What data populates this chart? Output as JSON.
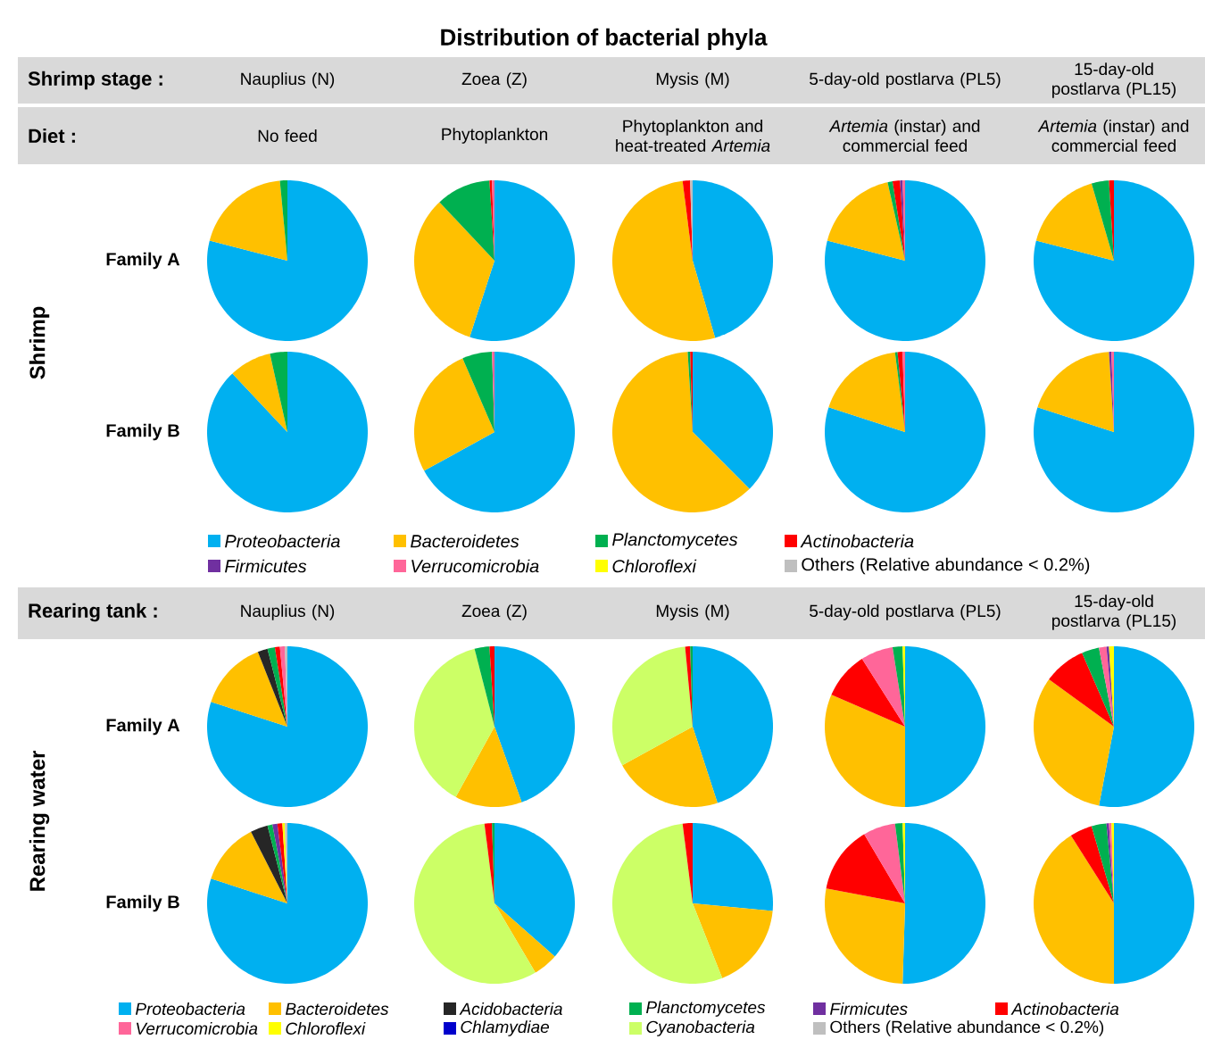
{
  "chart_data": [
    {
      "type": "other",
      "title": "Distribution of bacterial phyla",
      "annotations": [
        "Shrimp stage :",
        "Diet :",
        "Shrimp",
        "Rearing tank :",
        "Rearing water"
      ]
    },
    {
      "type": "pie",
      "title": "Nauplius (N)",
      "subtitle": "No feed",
      "ylabel": "Family A",
      "categories": [
        null,
        null,
        null
      ],
      "values": [
        79,
        19.5,
        1.5
      ],
      "colors": [
        "#00b0f0",
        "#ffc000",
        "#00b050"
      ]
    },
    {
      "type": "pie",
      "title": "Zoea (Z)",
      "subtitle": "Phytoplankton",
      "categories": [
        null,
        null,
        null,
        null,
        null
      ],
      "values": [
        55,
        33,
        11,
        0.5,
        0.5
      ],
      "colors": [
        "#00b0f0",
        "#ffc000",
        "#00b050",
        "#ff0000",
        "#ff6699"
      ]
    },
    {
      "type": "pie",
      "title": "Mysis (M)",
      "subtitle": "Phytoplankton and heat-treated *Artemia*",
      "categories": [
        null,
        null,
        null,
        null
      ],
      "values": [
        45.5,
        52.5,
        1.5,
        0.5
      ],
      "colors": [
        "#00b0f0",
        "#ffc000",
        "#ff0000",
        "#bfbfbf"
      ]
    },
    {
      "type": "pie",
      "title": "5-day-old postlarva (PL5)",
      "subtitle": "*Artemia* (instar) and commercial feed",
      "categories": [
        null,
        null,
        null,
        null,
        null,
        null
      ],
      "values": [
        79,
        17.5,
        1,
        1.5,
        0.5,
        0.5
      ],
      "colors": [
        "#00b0f0",
        "#ffc000",
        "#00b050",
        "#ff0000",
        "#7030a0",
        "#ff6699"
      ]
    },
    {
      "type": "pie",
      "title": "15-day-old postlarva (PL15)",
      "subtitle": "*Artemia* (instar) and commercial feed",
      "categories": [
        null,
        null,
        null,
        null
      ],
      "values": [
        79,
        16.5,
        3.5,
        1
      ],
      "colors": [
        "#00b0f0",
        "#ffc000",
        "#00b050",
        "#ff0000"
      ]
    },
    {
      "type": "pie",
      "ylabel": "Family B",
      "legend": "bottom",
      "categories": [
        "Proteobacteria",
        "Bacteroidetes",
        "Planctomycetes",
        "Actinobacteria",
        "Firmicutes",
        "Verrucomicrobia",
        "Chloroflexi",
        "Others (Relative abundance < 0.2%)"
      ],
      "values": [
        88,
        8.5,
        3.5,
        0,
        0,
        0,
        0,
        0
      ],
      "colors": [
        "#00b0f0",
        "#ffc000",
        "#00b050",
        "#ff0000",
        "#7030a0",
        "#ff6699",
        "#ffff00",
        "#bfbfbf"
      ]
    },
    {
      "type": "pie",
      "categories": [
        null,
        null,
        null,
        null
      ],
      "values": [
        67,
        26.5,
        6,
        0.5
      ],
      "colors": [
        "#00b0f0",
        "#ffc000",
        "#00b050",
        "#ff6699"
      ]
    },
    {
      "type": "pie",
      "categories": [
        null,
        null,
        null,
        null
      ],
      "values": [
        37.5,
        61.5,
        0.5,
        0.5
      ],
      "colors": [
        "#00b0f0",
        "#ffc000",
        "#00b050",
        "#ff0000"
      ]
    },
    {
      "type": "pie",
      "categories": [
        null,
        null,
        null,
        null,
        null
      ],
      "values": [
        80,
        18,
        0.5,
        1,
        0.5
      ],
      "colors": [
        "#00b0f0",
        "#ffc000",
        "#00b050",
        "#ff0000",
        "#ff6699"
      ]
    },
    {
      "type": "pie",
      "categories": [
        null,
        null,
        null,
        null
      ],
      "values": [
        80,
        19,
        0.5,
        0.5
      ],
      "colors": [
        "#00b0f0",
        "#ffc000",
        "#7030a0",
        "#ff6699"
      ]
    },
    {
      "type": "pie",
      "title": "Nauplius (N)",
      "ylabel": "Family A",
      "categories": [
        null,
        null,
        null,
        null,
        null,
        null,
        null
      ],
      "values": [
        80,
        14,
        2,
        1.5,
        1,
        1,
        0.5
      ],
      "colors": [
        "#00b0f0",
        "#ffc000",
        "#262626",
        "#00b050",
        "#ff0000",
        "#ff6699",
        "#bfbfbf"
      ]
    },
    {
      "type": "pie",
      "title": "Zoea (Z)",
      "categories": [
        null,
        null,
        null,
        null,
        null
      ],
      "values": [
        44.5,
        13.5,
        38,
        3,
        1
      ],
      "colors": [
        "#00b0f0",
        "#ffc000",
        "#ccff66",
        "#00b050",
        "#ff0000"
      ]
    },
    {
      "type": "pie",
      "title": "Mysis (M)",
      "categories": [
        null,
        null,
        null,
        null,
        null
      ],
      "values": [
        45,
        22,
        31.5,
        1,
        0.5
      ],
      "colors": [
        "#00b0f0",
        "#ffc000",
        "#ccff66",
        "#ff0000",
        "#00b050"
      ]
    },
    {
      "type": "pie",
      "title": "5-day-old postlarva (PL5)",
      "categories": [
        null,
        null,
        null,
        null,
        null,
        null
      ],
      "values": [
        50,
        31.5,
        9.5,
        6.5,
        2,
        0.5
      ],
      "colors": [
        "#00b0f0",
        "#ffc000",
        "#ff0000",
        "#ff6699",
        "#00b050",
        "#ffff00"
      ]
    },
    {
      "type": "pie",
      "title": "15-day-old postlarva (PL15)",
      "categories": [
        null,
        null,
        null,
        null,
        null,
        null,
        null
      ],
      "values": [
        53,
        32,
        8.5,
        3.5,
        1.5,
        0.5,
        1
      ],
      "colors": [
        "#00b0f0",
        "#ffc000",
        "#ff0000",
        "#00b050",
        "#ff6699",
        "#7030a0",
        "#ffff00"
      ]
    },
    {
      "type": "pie",
      "ylabel": "Family B",
      "legend": "bottom",
      "categories": [
        "Proteobacteria",
        "Bacteroidetes",
        "Acidobacteria",
        "Planctomycetes",
        "Firmicutes",
        "Actinobacteria",
        "Verrucomicrobia",
        "Chloroflexi",
        "Chlamydiae",
        "Cyanobacteria",
        "Others (Relative abundance < 0.2%)"
      ],
      "values": [
        80,
        12.5,
        3.5,
        1,
        1,
        1,
        0,
        0.5,
        0,
        0,
        0.5
      ],
      "colors": [
        "#00b0f0",
        "#ffc000",
        "#262626",
        "#00b050",
        "#7030a0",
        "#ff0000",
        "#ff6699",
        "#ffff00",
        "#0000cc",
        "#ccff66",
        "#bfbfbf"
      ]
    },
    {
      "type": "pie",
      "categories": [
        null,
        null,
        null,
        null,
        null
      ],
      "values": [
        36.5,
        5,
        56.5,
        1.5,
        0.5
      ],
      "colors": [
        "#00b0f0",
        "#ffc000",
        "#ccff66",
        "#ff0000",
        "#00b050"
      ]
    },
    {
      "type": "pie",
      "categories": [
        null,
        null,
        null,
        null
      ],
      "values": [
        26.5,
        17.5,
        54,
        2
      ],
      "colors": [
        "#00b0f0",
        "#ffc000",
        "#ccff66",
        "#ff0000"
      ]
    },
    {
      "type": "pie",
      "categories": [
        null,
        null,
        null,
        null,
        null,
        null
      ],
      "values": [
        50.5,
        27.5,
        13.5,
        6.5,
        1.5,
        0.5
      ],
      "colors": [
        "#00b0f0",
        "#ffc000",
        "#ff0000",
        "#ff6699",
        "#00b050",
        "#ffff00"
      ]
    },
    {
      "type": "pie",
      "categories": [
        null,
        null,
        null,
        null,
        null,
        null,
        null
      ],
      "values": [
        50,
        41,
        4.5,
        3,
        0.5,
        0.5,
        0.5
      ],
      "colors": [
        "#00b0f0",
        "#ffc000",
        "#ff0000",
        "#00b050",
        "#7030a0",
        "#ff6699",
        "#ffff00"
      ]
    }
  ]
}
